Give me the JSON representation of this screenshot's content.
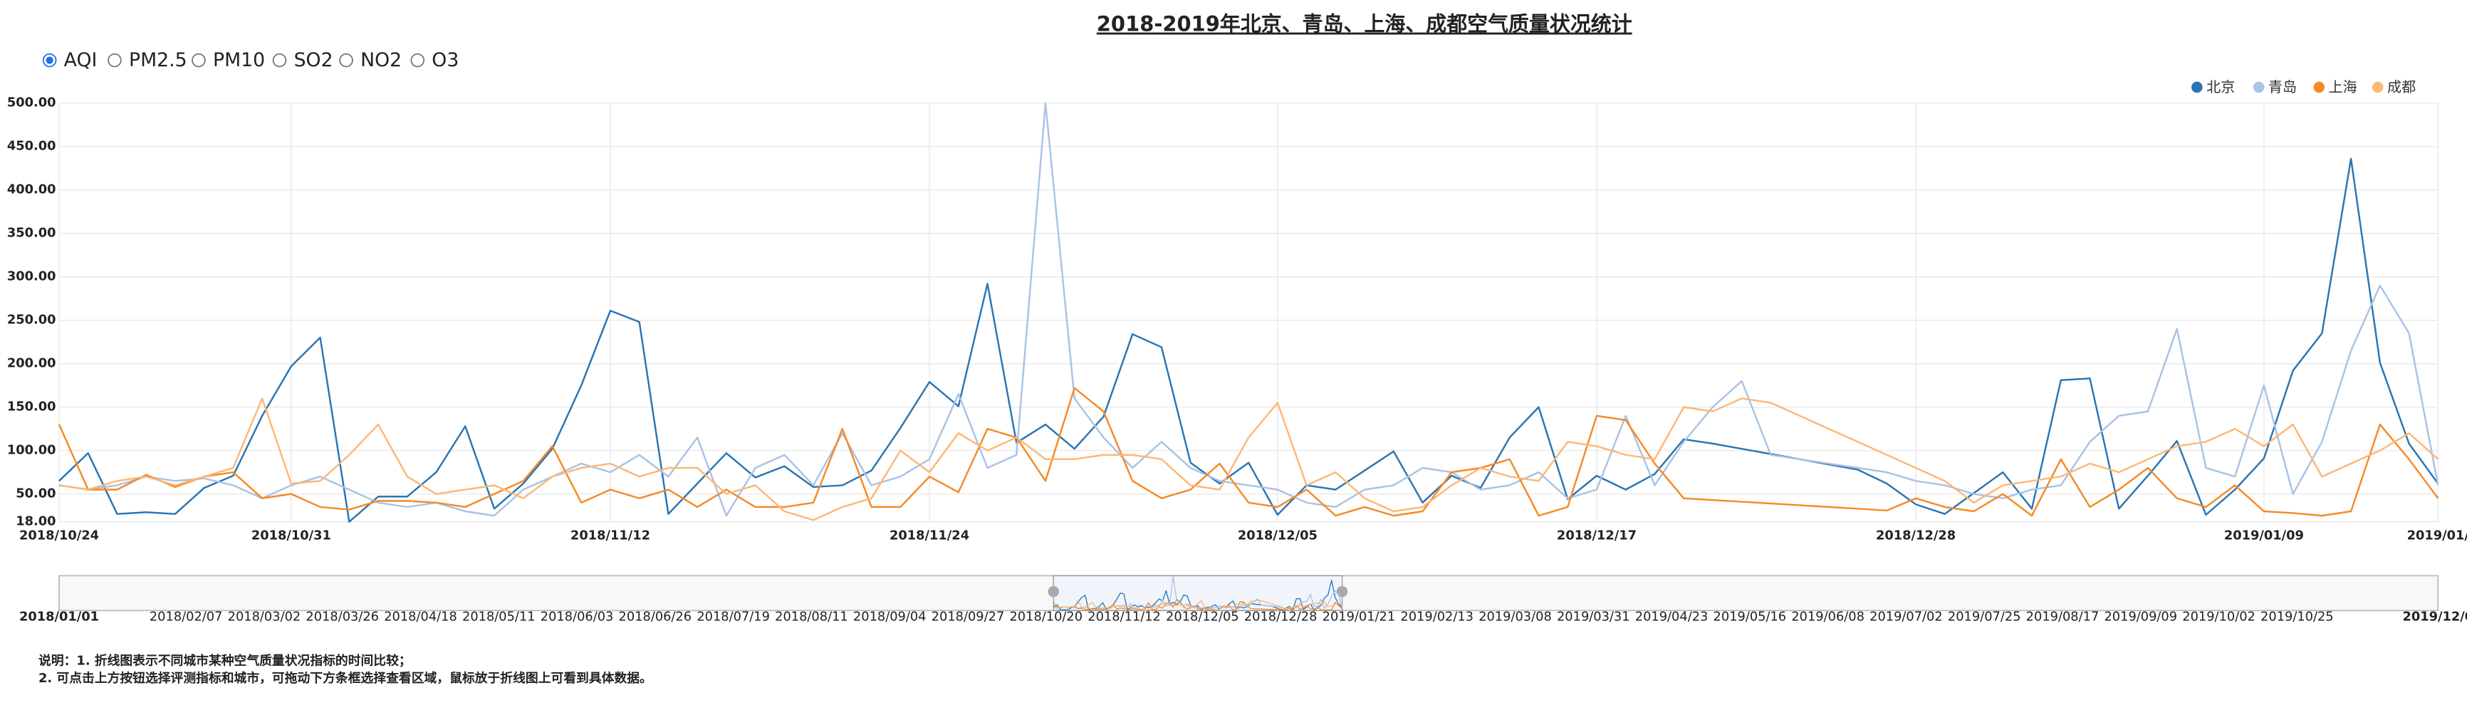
{
  "title": "2018-2019年北京、青岛、上海、成都空气质量状况统计",
  "indicators": [
    "AQI",
    "PM2.5",
    "PM10",
    "SO2",
    "NO2",
    "O3"
  ],
  "selected_indicator": 0,
  "chart_data": {
    "type": "line",
    "legend": "top-right",
    "grid": true,
    "categories": [
      "2018/10/24",
      null,
      null,
      null,
      null,
      null,
      null,
      null,
      "2018/10/31",
      null,
      null,
      null,
      null,
      null,
      null,
      null,
      null,
      null,
      null,
      "2018/11/12",
      null,
      null,
      null,
      null,
      null,
      null,
      null,
      null,
      null,
      null,
      "2018/11/24",
      null,
      null,
      null,
      null,
      null,
      null,
      null,
      null,
      null,
      null,
      null,
      "2018/12/05",
      null,
      null,
      null,
      null,
      null,
      null,
      null,
      null,
      null,
      null,
      "2018/12/17",
      null,
      null,
      null,
      null,
      null,
      null,
      null,
      null,
      null,
      null,
      "2018/12/28",
      null,
      null,
      null,
      null,
      null,
      null,
      null,
      null,
      null,
      null,
      null,
      "2019/01/09",
      null,
      null,
      null,
      null,
      null,
      "2019/01/"
    ],
    "ylim": [
      18,
      500
    ],
    "yticks": [
      {
        "value": 18,
        "label": "18.00"
      },
      {
        "value": 50,
        "label": "50.00"
      },
      {
        "value": 100,
        "label": "100.00"
      },
      {
        "value": 150,
        "label": "150.00"
      },
      {
        "value": 200,
        "label": "200.00"
      },
      {
        "value": 250,
        "label": "250.00"
      },
      {
        "value": 300,
        "label": "300.00"
      },
      {
        "value": 350,
        "label": "350.00"
      },
      {
        "value": 400,
        "label": "400.00"
      },
      {
        "value": 450,
        "label": "450.00"
      },
      {
        "value": 500,
        "label": "500.00"
      }
    ],
    "series": [
      {
        "name": "北京",
        "color": "#2a75b3",
        "values": [
          65,
          97,
          27,
          29,
          27,
          57,
          71,
          140,
          197,
          230,
          18,
          47,
          47,
          75,
          128,
          33,
          62,
          102,
          175,
          261,
          248,
          27,
          62,
          97,
          69,
          82,
          58,
          60,
          77,
          126,
          179,
          151,
          292,
          109,
          130,
          102,
          139,
          234,
          219,
          86,
          62,
          86,
          26,
          60,
          55,
          77,
          99,
          40,
          71,
          57,
          115,
          150,
          44,
          71,
          55,
          73,
          113,
          108,
          102,
          96,
          90,
          84,
          78,
          62,
          38,
          27,
          51,
          75,
          33,
          181,
          183,
          33,
          71,
          111,
          26,
          55,
          91,
          192,
          235,
          436,
          201,
          108,
          62
        ]
      },
      {
        "name": "青岛",
        "color": "#a9c3e5",
        "values": [
          60,
          55,
          60,
          70,
          65,
          68,
          60,
          45,
          60,
          70,
          55,
          40,
          35,
          40,
          30,
          25,
          55,
          70,
          85,
          75,
          95,
          70,
          115,
          25,
          80,
          95,
          60,
          120,
          60,
          70,
          90,
          165,
          80,
          95,
          500,
          160,
          115,
          80,
          110,
          80,
          65,
          60,
          55,
          40,
          35,
          55,
          60,
          80,
          75,
          55,
          60,
          75,
          45,
          55,
          140,
          60,
          110,
          150,
          180,
          95,
          90,
          85,
          80,
          75,
          65,
          60,
          50,
          45,
          55,
          60,
          110,
          140,
          145,
          240,
          80,
          70,
          175,
          50,
          110,
          215,
          290,
          235,
          60
        ]
      },
      {
        "name": "上海",
        "color": "#f58a27",
        "values": [
          130,
          55,
          55,
          72,
          58,
          70,
          75,
          45,
          50,
          35,
          32,
          42,
          42,
          40,
          35,
          50,
          65,
          105,
          40,
          55,
          45,
          55,
          35,
          55,
          35,
          35,
          40,
          125,
          35,
          35,
          70,
          52,
          125,
          115,
          65,
          172,
          145,
          65,
          45,
          55,
          85,
          40,
          35,
          55,
          25,
          35,
          25,
          30,
          75,
          80,
          90,
          25,
          35,
          140,
          135,
          85,
          45,
          43,
          41,
          39,
          37,
          35,
          33,
          31,
          45,
          35,
          30,
          50,
          25,
          90,
          35,
          55,
          80,
          45,
          35,
          60,
          30,
          28,
          25,
          30,
          130,
          90,
          45
        ]
      },
      {
        "name": "成都",
        "color": "#fdb776",
        "values": [
          60,
          55,
          65,
          70,
          60,
          70,
          80,
          160,
          62,
          65,
          95,
          130,
          70,
          50,
          55,
          60,
          45,
          70,
          80,
          85,
          70,
          80,
          80,
          50,
          60,
          30,
          20,
          35,
          45,
          100,
          75,
          120,
          100,
          115,
          90,
          90,
          95,
          95,
          90,
          60,
          55,
          115,
          155,
          60,
          75,
          45,
          30,
          35,
          60,
          80,
          70,
          65,
          110,
          105,
          95,
          90,
          150,
          145,
          160,
          155,
          140,
          125,
          110,
          95,
          80,
          65,
          40,
          60,
          65,
          70,
          85,
          75,
          90,
          105,
          110,
          125,
          105,
          130,
          70,
          85,
          100,
          120,
          90
        ]
      }
    ]
  },
  "slider": {
    "labels": [
      "2018/01/01",
      "2018/02/07",
      "2018/03/02",
      "2018/03/26",
      "2018/04/18",
      "2018/05/11",
      "2018/06/03",
      "2018/06/26",
      "2018/07/19",
      "2018/08/11",
      "2018/09/04",
      "2018/09/27",
      "2018/10/20",
      "2018/11/12",
      "2018/12/05",
      "2018/12/28",
      "2019/01/21",
      "2019/02/13",
      "2019/03/08",
      "2019/03/31",
      "2019/04/23",
      "2019/05/16",
      "2019/06/08",
      "2019/07/02",
      "2019/07/25",
      "2019/08/17",
      "2019/09/09",
      "2019/10/02",
      "2019/10/25",
      "2019/12/0"
    ]
  },
  "notes": [
    "说明：1. 折线图表示不同城市某种空气质量状况指标的时间比较；",
    "2. 可点击上方按钮选择评测指标和城市，可拖动下方条框选择查看区域，鼠标放于折线图上可看到具体数据。"
  ]
}
